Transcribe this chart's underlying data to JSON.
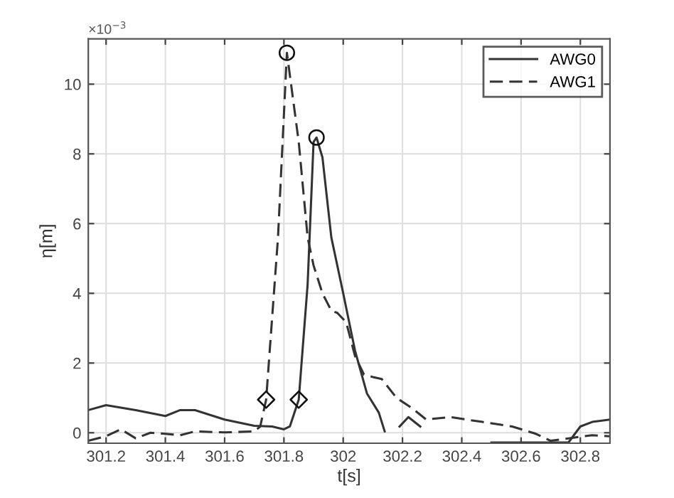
{
  "chart_data": {
    "type": "line",
    "xlabel": "t[s]",
    "ylabel": "η[m]",
    "annotations": [
      "×10$^{−3}$"
    ],
    "xlim": [
      301.14,
      302.9
    ],
    "ylim": [
      -0.3,
      11.3
    ],
    "xticks": [
      301.2,
      301.4,
      301.6,
      301.8,
      302,
      302.2,
      302.4,
      302.6,
      302.8
    ],
    "yticks": [
      0,
      2,
      4,
      6,
      8,
      10
    ],
    "grid": true,
    "legend": "top right",
    "series": [
      {
        "name": "AWG0",
        "color": "#333333",
        "line_style": "solid",
        "marker": "none",
        "x": [
          301.14,
          301.2,
          301.3,
          301.4,
          301.45,
          301.5,
          301.6,
          301.7,
          301.76,
          301.8,
          301.82,
          301.85,
          301.88,
          301.9,
          301.91,
          301.93,
          301.96,
          302.0,
          302.04,
          302.08,
          302.12,
          302.14,
          302.16,
          302.19,
          302.22,
          302.26,
          302.31,
          302.5,
          302.76,
          302.8,
          302.84,
          302.9
        ],
        "values": [
          0.65,
          0.79,
          0.65,
          0.48,
          0.65,
          0.65,
          0.38,
          0.2,
          0.18,
          0.1,
          0.18,
          0.95,
          4.26,
          8.34,
          8.47,
          7.9,
          5.6,
          4.0,
          2.35,
          1.13,
          0.58,
          0.04,
          null,
          0.18,
          0.45,
          0.18,
          null,
          -0.28,
          -0.28,
          0.18,
          0.31,
          0.38
        ]
      },
      {
        "name": "AWG1",
        "color": "#333333",
        "line_style": "dashed",
        "marker": "none",
        "x": [
          301.14,
          301.2,
          301.25,
          301.3,
          301.35,
          301.4,
          301.45,
          301.5,
          301.6,
          301.7,
          301.72,
          301.74,
          301.78,
          301.81,
          301.85,
          301.88,
          301.9,
          301.93,
          301.96,
          301.98,
          302.01,
          302.04,
          302.07,
          302.1,
          302.13,
          302.18,
          302.23,
          302.28,
          302.36,
          302.47,
          302.57,
          302.65,
          302.7,
          302.76,
          302.84,
          302.9
        ],
        "values": [
          -0.23,
          -0.1,
          0.1,
          -0.16,
          0.0,
          -0.03,
          -0.07,
          0.04,
          0.01,
          0.04,
          0.18,
          0.95,
          5.6,
          10.9,
          8.34,
          5.6,
          4.8,
          4.0,
          3.5,
          3.44,
          3.17,
          2.2,
          1.67,
          1.6,
          1.54,
          1.0,
          0.72,
          0.38,
          0.45,
          0.31,
          0.18,
          -0.03,
          -0.23,
          -0.16,
          -0.07,
          -0.1
        ]
      },
      {
        "type": "scatter",
        "color": "#111111",
        "marker": "circle",
        "x": [
          301.81,
          301.91
        ],
        "values": [
          10.9,
          8.47
        ]
      },
      {
        "type": "scatter",
        "color": "#111111",
        "marker": "diamond",
        "x": [
          301.74,
          301.85
        ],
        "values": [
          0.95,
          0.95
        ]
      }
    ]
  }
}
